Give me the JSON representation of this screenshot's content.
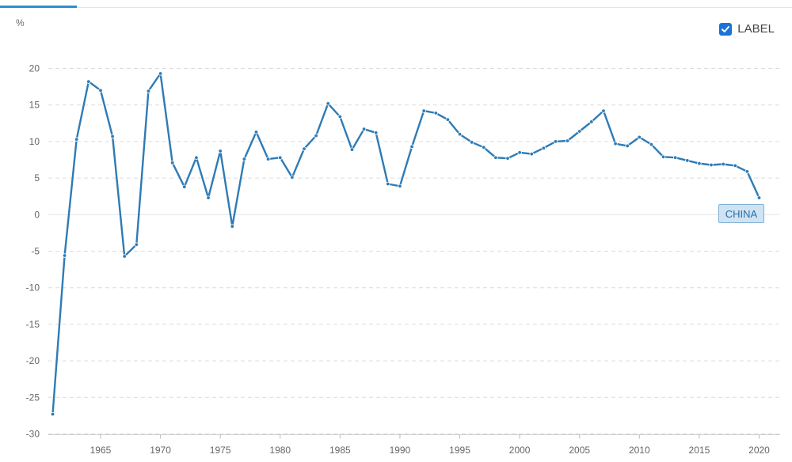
{
  "unit_label": "%",
  "label_toggle": {
    "text": "LABEL",
    "checked": true,
    "icon": "checkmark-icon"
  },
  "colors": {
    "line": "#2e7bb5",
    "grid": "#dcdcdc",
    "tab": "#2b8fd3",
    "checkbox": "#1a73d9"
  },
  "chart_data": {
    "type": "line",
    "title": "",
    "xlabel": "",
    "ylabel": "%",
    "xlim": [
      1961,
      2020
    ],
    "ylim": [
      -30,
      20
    ],
    "yticks": [
      20,
      15,
      10,
      5,
      0,
      -5,
      -10,
      -15,
      -20,
      -25,
      -30
    ],
    "xticks": [
      1965,
      1970,
      1975,
      1980,
      1985,
      1990,
      1995,
      2000,
      2005,
      2010,
      2015,
      2020
    ],
    "grid": true,
    "legend": "none",
    "series": [
      {
        "name": "CHINA",
        "x": [
          1961,
          1962,
          1963,
          1964,
          1965,
          1966,
          1967,
          1968,
          1969,
          1970,
          1971,
          1972,
          1973,
          1974,
          1975,
          1976,
          1977,
          1978,
          1979,
          1980,
          1981,
          1982,
          1983,
          1984,
          1985,
          1986,
          1987,
          1988,
          1989,
          1990,
          1991,
          1992,
          1993,
          1994,
          1995,
          1996,
          1997,
          1998,
          1999,
          2000,
          2001,
          2002,
          2003,
          2004,
          2005,
          2006,
          2007,
          2008,
          2009,
          2010,
          2011,
          2012,
          2013,
          2014,
          2015,
          2016,
          2017,
          2018,
          2019,
          2020
        ],
        "values": [
          -27.3,
          -5.6,
          10.3,
          18.2,
          17.0,
          10.7,
          -5.7,
          -4.1,
          16.9,
          19.3,
          7.1,
          3.8,
          7.8,
          2.3,
          8.7,
          -1.6,
          7.6,
          11.3,
          7.6,
          7.8,
          5.1,
          9.0,
          10.8,
          15.2,
          13.4,
          8.9,
          11.7,
          11.2,
          4.2,
          3.9,
          9.3,
          14.2,
          13.9,
          13.0,
          11.0,
          9.9,
          9.2,
          7.8,
          7.7,
          8.5,
          8.3,
          9.1,
          10.0,
          10.1,
          11.4,
          12.7,
          14.2,
          9.7,
          9.4,
          10.6,
          9.6,
          7.9,
          7.8,
          7.4,
          7.0,
          6.8,
          6.9,
          6.7,
          5.9,
          2.3
        ]
      }
    ]
  }
}
